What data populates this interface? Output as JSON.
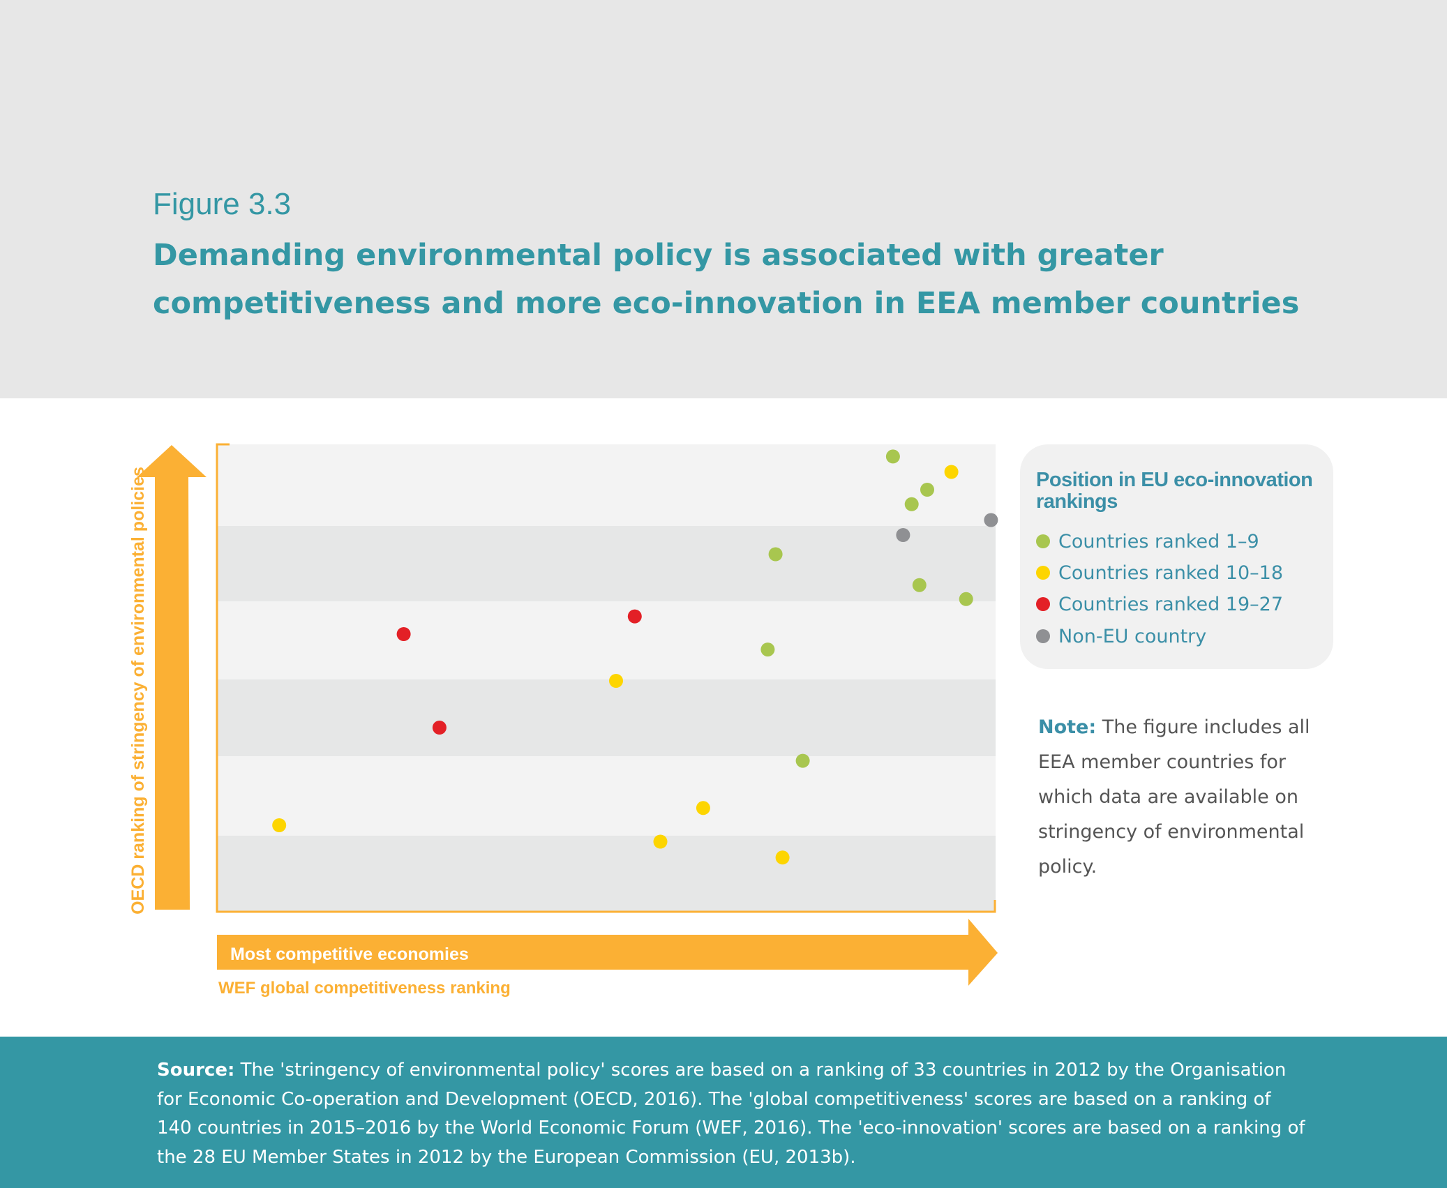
{
  "header": {
    "figure_label": "Figure 3.3",
    "title": "Demanding environmental policy is associated with greater competitiveness and more eco-innovation in EEA member countries"
  },
  "chart_data": {
    "type": "scatter",
    "title": "",
    "xlabel": "WEF global competitiveness ranking",
    "x_arrow_label": "Most competitive economies",
    "ylabel": "OECD ranking of stringency of environmental policies",
    "xlim": [
      0,
      100
    ],
    "ylim": [
      0,
      100
    ],
    "grid": "alternating horizontal bands",
    "legend_title": "Position in EU eco-innovation rankings",
    "legend_position": "right",
    "series": [
      {
        "name": "Countries ranked 1–9",
        "color": "#a8c64f",
        "points": [
          {
            "x": 86.9,
            "y": 97.4
          },
          {
            "x": 91.3,
            "y": 90.3
          },
          {
            "x": 89.3,
            "y": 87.2
          },
          {
            "x": 71.8,
            "y": 76.5
          },
          {
            "x": 90.3,
            "y": 69.9
          },
          {
            "x": 96.3,
            "y": 66.9
          },
          {
            "x": 70.8,
            "y": 56.1
          },
          {
            "x": 75.3,
            "y": 32.3
          }
        ]
      },
      {
        "name": "Countries ranked 10–18",
        "color": "#fdd500",
        "points": [
          {
            "x": 94.4,
            "y": 94.1
          },
          {
            "x": 51.3,
            "y": 49.4
          },
          {
            "x": 8.0,
            "y": 18.5
          },
          {
            "x": 62.5,
            "y": 22.2
          },
          {
            "x": 57.0,
            "y": 15.0
          },
          {
            "x": 72.7,
            "y": 11.6
          }
        ]
      },
      {
        "name": "Countries ranked 19–27",
        "color": "#e32026",
        "points": [
          {
            "x": 53.7,
            "y": 63.2
          },
          {
            "x": 24.0,
            "y": 59.4
          },
          {
            "x": 28.6,
            "y": 39.4
          }
        ]
      },
      {
        "name": "Non-EU country",
        "color": "#8f9093",
        "points": [
          {
            "x": 99.5,
            "y": 83.8
          },
          {
            "x": 88.2,
            "y": 80.6
          }
        ]
      }
    ]
  },
  "note": {
    "label": "Note:",
    "text": "The figure includes all EEA member countries for which data are available on stringency of environmental policy."
  },
  "source": {
    "label": "Source:",
    "text": "The 'stringency of environmental policy' scores are based on a ranking of 33 countries in 2012 by the Organisation for Economic Co-operation and Development (OECD, 2016). The 'global competitiveness' scores are based on a ranking of 140 countries in 2015–2016 by the World Economic Forum (WEF, 2016). The 'eco-innovation' scores are based on a ranking of the 28 EU Member States in 2012 by the European Commission (EU, 2013b)."
  },
  "colors": {
    "accent": "#3497a4",
    "arrow": "#fbb034",
    "band_light": "#f3f3f3",
    "band_dark": "#e6e7e7"
  }
}
